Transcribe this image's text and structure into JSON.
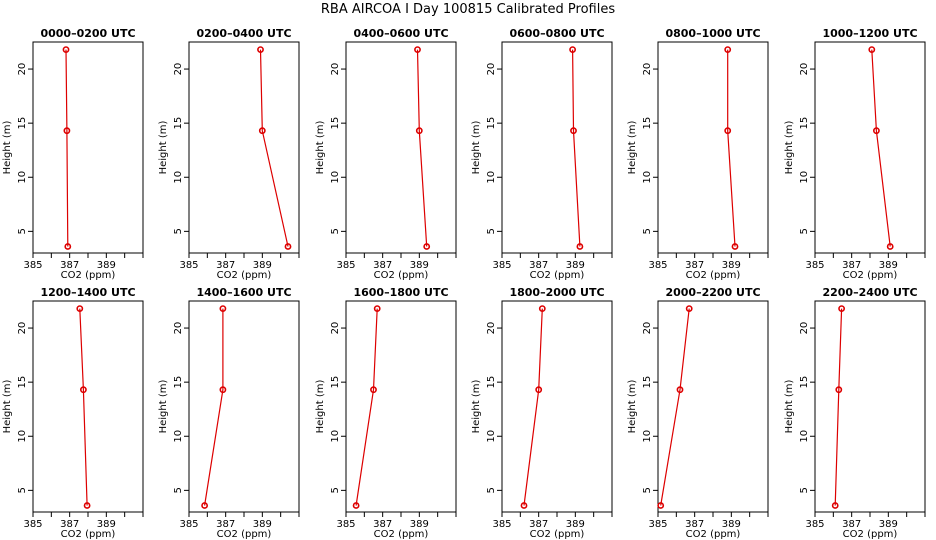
{
  "figure_title": "RBA AIRCOA I  Day 100815  Calibrated Profiles",
  "chart_data": [
    {
      "type": "line",
      "title": "0000–0200 UTC",
      "xlabel": "CO2 (ppm)",
      "ylabel": "Height (m)",
      "xlim": [
        385,
        391
      ],
      "ylim": [
        3,
        22.5
      ],
      "xticks": [
        385,
        387,
        389
      ],
      "yticks": [
        5,
        10,
        15,
        20
      ],
      "x": [
        386.9,
        386.85,
        386.8
      ],
      "y": [
        3.6,
        14.3,
        21.8
      ]
    },
    {
      "type": "line",
      "title": "0200–0400 UTC",
      "xlabel": "CO2 (ppm)",
      "ylabel": "Height (m)",
      "xlim": [
        385,
        391
      ],
      "ylim": [
        3,
        22.5
      ],
      "xticks": [
        385,
        387,
        389
      ],
      "yticks": [
        5,
        10,
        15,
        20
      ],
      "x": [
        390.4,
        389.0,
        388.9
      ],
      "y": [
        3.6,
        14.3,
        21.8
      ]
    },
    {
      "type": "line",
      "title": "0400–0600 UTC",
      "xlabel": "CO2 (ppm)",
      "ylabel": "Height (m)",
      "xlim": [
        385,
        391
      ],
      "ylim": [
        3,
        22.5
      ],
      "xticks": [
        385,
        387,
        389
      ],
      "yticks": [
        5,
        10,
        15,
        20
      ],
      "x": [
        389.4,
        389.0,
        388.9
      ],
      "y": [
        3.6,
        14.3,
        21.8
      ]
    },
    {
      "type": "line",
      "title": "0600–0800 UTC",
      "xlabel": "CO2 (ppm)",
      "ylabel": "Height (m)",
      "xlim": [
        385,
        391
      ],
      "ylim": [
        3,
        22.5
      ],
      "xticks": [
        385,
        387,
        389
      ],
      "yticks": [
        5,
        10,
        15,
        20
      ],
      "x": [
        389.25,
        388.9,
        388.85
      ],
      "y": [
        3.6,
        14.3,
        21.8
      ]
    },
    {
      "type": "line",
      "title": "0800–1000 UTC",
      "xlabel": "CO2 (ppm)",
      "ylabel": "Height (m)",
      "xlim": [
        385,
        391
      ],
      "ylim": [
        3,
        22.5
      ],
      "xticks": [
        385,
        387,
        389
      ],
      "yticks": [
        5,
        10,
        15,
        20
      ],
      "x": [
        389.2,
        388.8,
        388.8
      ],
      "y": [
        3.6,
        14.3,
        21.8
      ]
    },
    {
      "type": "line",
      "title": "1000–1200 UTC",
      "xlabel": "CO2 (ppm)",
      "ylabel": "Height (m)",
      "xlim": [
        385,
        391
      ],
      "ylim": [
        3,
        22.5
      ],
      "xticks": [
        385,
        387,
        389
      ],
      "yticks": [
        5,
        10,
        15,
        20
      ],
      "x": [
        389.1,
        388.35,
        388.1
      ],
      "y": [
        3.6,
        14.3,
        21.8
      ]
    },
    {
      "type": "line",
      "title": "1200–1400 UTC",
      "xlabel": "CO2 (ppm)",
      "ylabel": "Height (m)",
      "xlim": [
        385,
        391
      ],
      "ylim": [
        3,
        22.5
      ],
      "xticks": [
        385,
        387,
        389
      ],
      "yticks": [
        5,
        10,
        15,
        20
      ],
      "x": [
        387.95,
        387.75,
        387.55
      ],
      "y": [
        3.6,
        14.3,
        21.8
      ]
    },
    {
      "type": "line",
      "title": "1400–1600 UTC",
      "xlabel": "CO2 (ppm)",
      "ylabel": "Height (m)",
      "xlim": [
        385,
        391
      ],
      "ylim": [
        3,
        22.5
      ],
      "xticks": [
        385,
        387,
        389
      ],
      "yticks": [
        5,
        10,
        15,
        20
      ],
      "x": [
        385.85,
        386.85,
        386.85
      ],
      "y": [
        3.6,
        14.3,
        21.8
      ]
    },
    {
      "type": "line",
      "title": "1600–1800 UTC",
      "xlabel": "CO2 (ppm)",
      "ylabel": "Height (m)",
      "xlim": [
        385,
        391
      ],
      "ylim": [
        3,
        22.5
      ],
      "xticks": [
        385,
        387,
        389
      ],
      "yticks": [
        5,
        10,
        15,
        20
      ],
      "x": [
        385.55,
        386.5,
        386.7
      ],
      "y": [
        3.6,
        14.3,
        21.8
      ]
    },
    {
      "type": "line",
      "title": "1800–2000 UTC",
      "xlabel": "CO2 (ppm)",
      "ylabel": "Height (m)",
      "xlim": [
        385,
        391
      ],
      "ylim": [
        3,
        22.5
      ],
      "xticks": [
        385,
        387,
        389
      ],
      "yticks": [
        5,
        10,
        15,
        20
      ],
      "x": [
        386.2,
        387.0,
        387.2
      ],
      "y": [
        3.6,
        14.3,
        21.8
      ]
    },
    {
      "type": "line",
      "title": "2000–2200 UTC",
      "xlabel": "CO2 (ppm)",
      "ylabel": "Height (m)",
      "xlim": [
        385,
        391
      ],
      "ylim": [
        3,
        22.5
      ],
      "xticks": [
        385,
        387,
        389
      ],
      "yticks": [
        5,
        10,
        15,
        20
      ],
      "x": [
        385.15,
        386.2,
        386.7
      ],
      "y": [
        3.6,
        14.3,
        21.8
      ]
    },
    {
      "type": "line",
      "title": "2200–2400 UTC",
      "xlabel": "CO2 (ppm)",
      "ylabel": "Height (m)",
      "xlim": [
        385,
        391
      ],
      "ylim": [
        3,
        22.5
      ],
      "xticks": [
        385,
        387,
        389
      ],
      "yticks": [
        5,
        10,
        15,
        20
      ],
      "x": [
        386.1,
        386.3,
        386.45
      ],
      "y": [
        3.6,
        14.3,
        21.8
      ]
    }
  ]
}
